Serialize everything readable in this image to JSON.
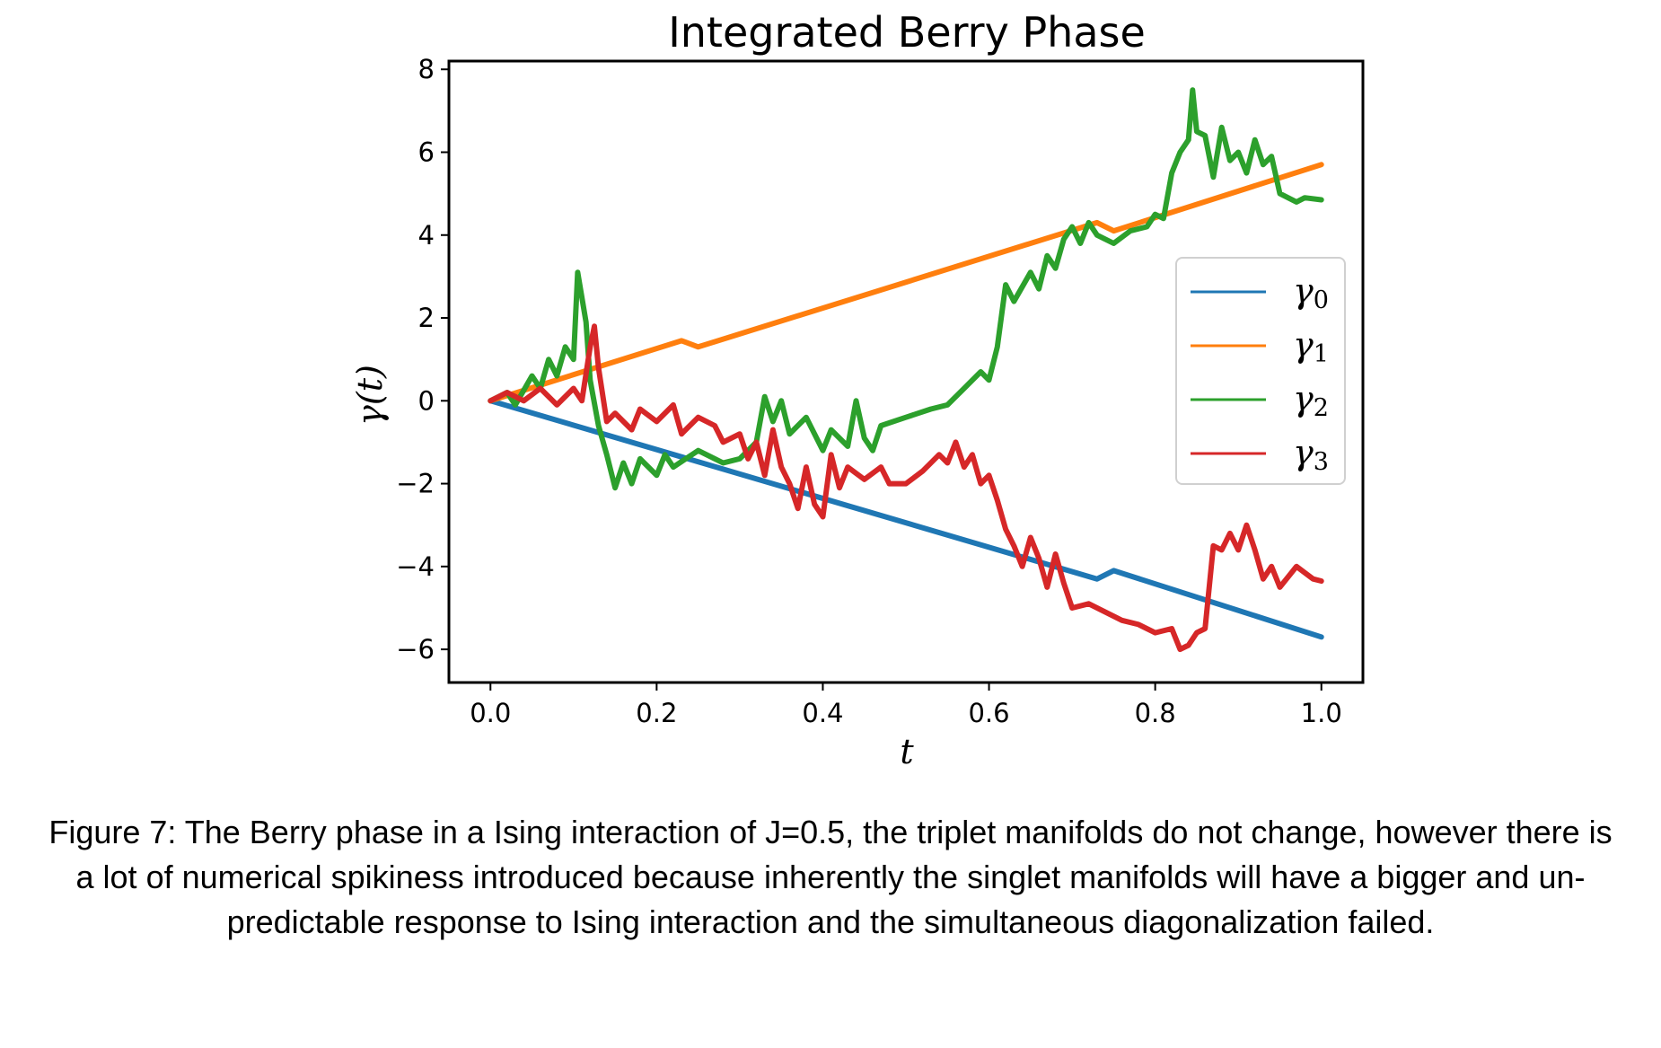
{
  "chart_data": {
    "type": "line",
    "title": "Integrated Berry Phase",
    "xlabel": "t",
    "ylabel": "γ(t)",
    "xlim": [
      -0.05,
      1.05
    ],
    "ylim": [
      -6.8,
      8.2
    ],
    "xticks": [
      "0.0",
      "0.2",
      "0.4",
      "0.6",
      "0.8",
      "1.0"
    ],
    "xtick_values": [
      0,
      0.2,
      0.4,
      0.6,
      0.8,
      1.0
    ],
    "yticks": [
      "−6",
      "−4",
      "−2",
      "0",
      "2",
      "4",
      "6",
      "8"
    ],
    "ytick_values": [
      -6,
      -4,
      -2,
      0,
      2,
      4,
      6,
      8
    ],
    "grid": false,
    "legend_position": "right",
    "series": [
      {
        "name": "γ0",
        "name_base": "γ",
        "name_sub": "0",
        "color": "#1f77b4",
        "points": [
          [
            0,
            0
          ],
          [
            0.73,
            -4.3
          ],
          [
            0.75,
            -4.1
          ],
          [
            1.0,
            -5.7
          ]
        ]
      },
      {
        "name": "γ1",
        "name_base": "γ",
        "name_sub": "1",
        "color": "#ff7f0e",
        "points": [
          [
            0,
            0
          ],
          [
            0.23,
            1.45
          ],
          [
            0.25,
            1.3
          ],
          [
            0.73,
            4.3
          ],
          [
            0.75,
            4.1
          ],
          [
            1.0,
            5.7
          ]
        ]
      },
      {
        "name": "γ2",
        "name_base": "γ",
        "name_sub": "2",
        "color": "#2ca02c",
        "points": [
          [
            0,
            0
          ],
          [
            0.02,
            0.2
          ],
          [
            0.03,
            -0.1
          ],
          [
            0.05,
            0.6
          ],
          [
            0.06,
            0.3
          ],
          [
            0.07,
            1.0
          ],
          [
            0.08,
            0.6
          ],
          [
            0.09,
            1.3
          ],
          [
            0.1,
            1.0
          ],
          [
            0.105,
            3.1
          ],
          [
            0.115,
            1.9
          ],
          [
            0.12,
            0.5
          ],
          [
            0.13,
            -0.6
          ],
          [
            0.14,
            -1.3
          ],
          [
            0.15,
            -2.1
          ],
          [
            0.16,
            -1.5
          ],
          [
            0.17,
            -2.0
          ],
          [
            0.18,
            -1.4
          ],
          [
            0.2,
            -1.8
          ],
          [
            0.21,
            -1.3
          ],
          [
            0.22,
            -1.6
          ],
          [
            0.25,
            -1.2
          ],
          [
            0.28,
            -1.5
          ],
          [
            0.3,
            -1.4
          ],
          [
            0.32,
            -1.0
          ],
          [
            0.33,
            0.1
          ],
          [
            0.34,
            -0.5
          ],
          [
            0.35,
            0.0
          ],
          [
            0.36,
            -0.8
          ],
          [
            0.38,
            -0.4
          ],
          [
            0.4,
            -1.2
          ],
          [
            0.41,
            -0.7
          ],
          [
            0.43,
            -1.1
          ],
          [
            0.44,
            0.0
          ],
          [
            0.45,
            -0.9
          ],
          [
            0.46,
            -1.2
          ],
          [
            0.47,
            -0.6
          ],
          [
            0.5,
            -0.4
          ],
          [
            0.53,
            -0.2
          ],
          [
            0.55,
            -0.1
          ],
          [
            0.57,
            0.3
          ],
          [
            0.59,
            0.7
          ],
          [
            0.6,
            0.5
          ],
          [
            0.61,
            1.3
          ],
          [
            0.62,
            2.8
          ],
          [
            0.63,
            2.4
          ],
          [
            0.65,
            3.1
          ],
          [
            0.66,
            2.7
          ],
          [
            0.67,
            3.5
          ],
          [
            0.68,
            3.2
          ],
          [
            0.69,
            3.9
          ],
          [
            0.7,
            4.2
          ],
          [
            0.71,
            3.8
          ],
          [
            0.72,
            4.3
          ],
          [
            0.73,
            4.0
          ],
          [
            0.75,
            3.8
          ],
          [
            0.77,
            4.1
          ],
          [
            0.79,
            4.2
          ],
          [
            0.8,
            4.5
          ],
          [
            0.81,
            4.4
          ],
          [
            0.82,
            5.5
          ],
          [
            0.83,
            6.0
          ],
          [
            0.84,
            6.3
          ],
          [
            0.845,
            7.5
          ],
          [
            0.85,
            6.5
          ],
          [
            0.86,
            6.4
          ],
          [
            0.87,
            5.4
          ],
          [
            0.88,
            6.6
          ],
          [
            0.89,
            5.8
          ],
          [
            0.9,
            6.0
          ],
          [
            0.91,
            5.5
          ],
          [
            0.92,
            6.3
          ],
          [
            0.93,
            5.7
          ],
          [
            0.94,
            5.9
          ],
          [
            0.95,
            5.0
          ],
          [
            0.97,
            4.8
          ],
          [
            0.98,
            4.9
          ],
          [
            1.0,
            4.85
          ]
        ]
      },
      {
        "name": "γ3",
        "name_base": "γ",
        "name_sub": "3",
        "color": "#d62728",
        "points": [
          [
            0,
            0
          ],
          [
            0.02,
            0.2
          ],
          [
            0.04,
            0.0
          ],
          [
            0.06,
            0.3
          ],
          [
            0.08,
            -0.1
          ],
          [
            0.1,
            0.3
          ],
          [
            0.11,
            0.0
          ],
          [
            0.12,
            1.3
          ],
          [
            0.125,
            1.8
          ],
          [
            0.13,
            0.8
          ],
          [
            0.14,
            -0.5
          ],
          [
            0.15,
            -0.3
          ],
          [
            0.17,
            -0.7
          ],
          [
            0.18,
            -0.2
          ],
          [
            0.2,
            -0.5
          ],
          [
            0.22,
            -0.1
          ],
          [
            0.23,
            -0.8
          ],
          [
            0.25,
            -0.4
          ],
          [
            0.27,
            -0.6
          ],
          [
            0.28,
            -1.0
          ],
          [
            0.3,
            -0.8
          ],
          [
            0.31,
            -1.4
          ],
          [
            0.32,
            -1.0
          ],
          [
            0.33,
            -1.8
          ],
          [
            0.34,
            -0.7
          ],
          [
            0.35,
            -1.6
          ],
          [
            0.36,
            -2.0
          ],
          [
            0.37,
            -2.6
          ],
          [
            0.38,
            -1.6
          ],
          [
            0.39,
            -2.5
          ],
          [
            0.4,
            -2.8
          ],
          [
            0.41,
            -1.3
          ],
          [
            0.42,
            -2.1
          ],
          [
            0.43,
            -1.6
          ],
          [
            0.45,
            -1.9
          ],
          [
            0.47,
            -1.6
          ],
          [
            0.48,
            -2.0
          ],
          [
            0.5,
            -2.0
          ],
          [
            0.52,
            -1.7
          ],
          [
            0.54,
            -1.3
          ],
          [
            0.55,
            -1.5
          ],
          [
            0.56,
            -1.0
          ],
          [
            0.57,
            -1.6
          ],
          [
            0.58,
            -1.3
          ],
          [
            0.59,
            -2.0
          ],
          [
            0.6,
            -1.8
          ],
          [
            0.61,
            -2.4
          ],
          [
            0.62,
            -3.1
          ],
          [
            0.63,
            -3.5
          ],
          [
            0.64,
            -4.0
          ],
          [
            0.65,
            -3.3
          ],
          [
            0.66,
            -3.8
          ],
          [
            0.67,
            -4.5
          ],
          [
            0.68,
            -3.7
          ],
          [
            0.69,
            -4.4
          ],
          [
            0.7,
            -5.0
          ],
          [
            0.72,
            -4.9
          ],
          [
            0.74,
            -5.1
          ],
          [
            0.76,
            -5.3
          ],
          [
            0.78,
            -5.4
          ],
          [
            0.8,
            -5.6
          ],
          [
            0.82,
            -5.5
          ],
          [
            0.83,
            -6.0
          ],
          [
            0.84,
            -5.9
          ],
          [
            0.85,
            -5.6
          ],
          [
            0.86,
            -5.5
          ],
          [
            0.87,
            -3.5
          ],
          [
            0.88,
            -3.6
          ],
          [
            0.89,
            -3.2
          ],
          [
            0.9,
            -3.6
          ],
          [
            0.91,
            -3.0
          ],
          [
            0.92,
            -3.6
          ],
          [
            0.93,
            -4.3
          ],
          [
            0.94,
            -4.0
          ],
          [
            0.95,
            -4.5
          ],
          [
            0.97,
            -4.0
          ],
          [
            0.99,
            -4.3
          ],
          [
            1.0,
            -4.35
          ]
        ]
      }
    ]
  },
  "caption": "Figure 7: The Berry phase in a Ising interaction of J=0.5, the triplet manifolds do not change, however there is a lot of numerical spikiness introduced because inherently the singlet manifolds will have a bigger and un-predictable response to Ising interaction and the simultaneous diagonalization failed."
}
